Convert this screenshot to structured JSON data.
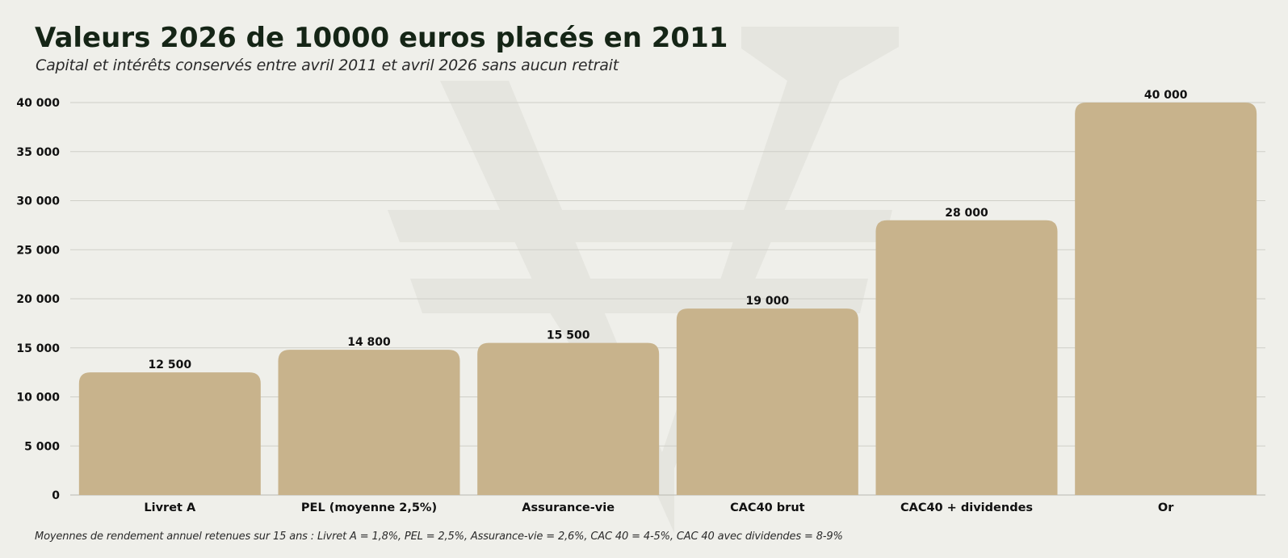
{
  "chart_data": {
    "type": "bar",
    "title": "Valeurs 2026 de 10000 euros placés en 2011",
    "subtitle": "Capital et intérêts conservés entre avril 2011 et avril 2026 sans aucun retrait",
    "categories": [
      "Livret A",
      "PEL (moyenne 2,5%)",
      "Assurance-vie",
      "CAC40 brut",
      "CAC40 + dividendes",
      "Or"
    ],
    "values": [
      12500,
      14800,
      15500,
      19000,
      28000,
      40000
    ],
    "value_labels": [
      "12 500",
      "14 800",
      "15 500",
      "19 000",
      "28 000",
      "40 000"
    ],
    "yticks": [
      0,
      5000,
      10000,
      15000,
      20000,
      25000,
      30000,
      35000,
      40000
    ],
    "ytick_labels": [
      "0",
      "5 000",
      "10 000",
      "15 000",
      "20 000",
      "25 000",
      "30 000",
      "35 000",
      "40 000"
    ],
    "ylim": [
      0,
      40000
    ],
    "xlabel": "",
    "ylabel": "",
    "grid": true,
    "bar_color": "#c8b38c",
    "footnote": "Moyennes de rendement annuel retenues sur 15 ans : Livret A = 1,8%, PEL = 2,5%, Assurance-vie = 2,6%, CAC 40 = 4-5%, CAC 40 avec dividendes = 8-9%"
  }
}
